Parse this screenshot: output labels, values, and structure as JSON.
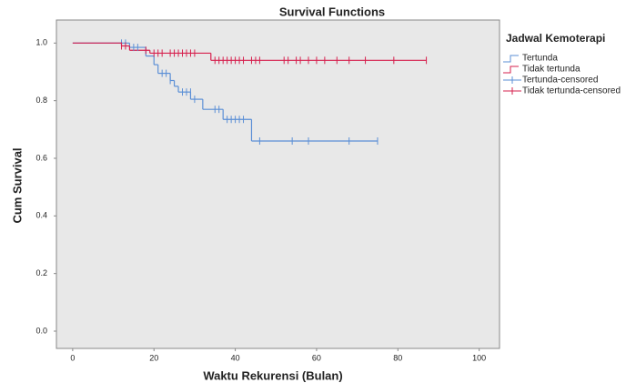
{
  "chart_data": {
    "type": "survival",
    "title": "Survival Functions",
    "xlabel": "Waktu Rekurensi (Bulan)",
    "ylabel": "Cum Survival",
    "legend_title": "Jadwal Kemoterapi",
    "xlim": [
      -4,
      105
    ],
    "ylim": [
      -0.06,
      1.08
    ],
    "xticks": [
      0,
      20,
      40,
      60,
      80,
      100
    ],
    "yticks": [
      {
        "value": 0,
        "label": "0.0"
      },
      0.2,
      0.4,
      0.6,
      0.8,
      {
        "value": 1,
        "label": "1.0"
      }
    ],
    "series": [
      {
        "name": "Tertunda",
        "color": "#5b8fd6",
        "kind": "step",
        "x": [
          0,
          14,
          18,
          20,
          21,
          24,
          25,
          26,
          29,
          32,
          37,
          44,
          75
        ],
        "values": [
          1.0,
          0.985,
          0.955,
          0.925,
          0.895,
          0.87,
          0.85,
          0.83,
          0.805,
          0.77,
          0.735,
          0.66,
          0.66
        ]
      },
      {
        "name": "Tidak tertunda",
        "color": "#d6204e",
        "kind": "step",
        "x": [
          0,
          12,
          14,
          19,
          34,
          87
        ],
        "values": [
          1.0,
          0.99,
          0.975,
          0.965,
          0.94,
          0.94
        ]
      },
      {
        "name": "Tertunda-censored",
        "color": "#5b8fd6",
        "kind": "censor",
        "x": [
          12,
          13,
          15,
          16,
          22,
          23,
          24,
          27,
          28,
          29,
          30,
          35,
          36,
          38,
          39,
          40,
          41,
          42,
          46,
          54,
          58,
          68,
          75
        ],
        "values": [
          1.0,
          1.0,
          0.985,
          0.985,
          0.895,
          0.895,
          0.87,
          0.83,
          0.83,
          0.83,
          0.805,
          0.77,
          0.77,
          0.735,
          0.735,
          0.735,
          0.735,
          0.735,
          0.66,
          0.66,
          0.66,
          0.66,
          0.66
        ]
      },
      {
        "name": "Tidak tertunda-censored",
        "color": "#d6204e",
        "kind": "censor",
        "x": [
          12,
          13,
          18,
          20,
          21,
          22,
          24,
          25,
          26,
          27,
          28,
          29,
          30,
          35,
          36,
          37,
          38,
          39,
          40,
          41,
          42,
          44,
          45,
          46,
          52,
          53,
          55,
          56,
          58,
          60,
          62,
          65,
          68,
          72,
          79,
          87
        ],
        "values": [
          0.99,
          0.99,
          0.975,
          0.965,
          0.965,
          0.965,
          0.965,
          0.965,
          0.965,
          0.965,
          0.965,
          0.965,
          0.965,
          0.94,
          0.94,
          0.94,
          0.94,
          0.94,
          0.94,
          0.94,
          0.94,
          0.94,
          0.94,
          0.94,
          0.94,
          0.94,
          0.94,
          0.94,
          0.94,
          0.94,
          0.94,
          0.94,
          0.94,
          0.94,
          0.94,
          0.94
        ]
      }
    ]
  }
}
